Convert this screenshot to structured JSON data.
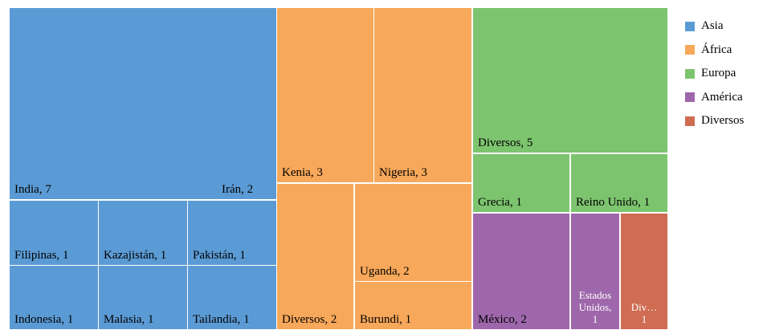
{
  "chart_data": {
    "type": "treemap",
    "groups": [
      {
        "name": "Asia",
        "color": "#5B9BD5",
        "items": [
          {
            "label": "India, 7",
            "value": 7
          },
          {
            "label": "Irán, 2",
            "value": 2
          },
          {
            "label": "Filipinas, 1",
            "value": 1
          },
          {
            "label": "Kazajistán, 1",
            "value": 1
          },
          {
            "label": "Pakistán, 1",
            "value": 1
          },
          {
            "label": "Indonesia, 1",
            "value": 1
          },
          {
            "label": "Malasia, 1",
            "value": 1
          },
          {
            "label": "Tailandia, 1",
            "value": 1
          }
        ]
      },
      {
        "name": "África",
        "color": "#F7A85A",
        "items": [
          {
            "label": "Kenia, 3",
            "value": 3
          },
          {
            "label": "Nigeria, 3",
            "value": 3
          },
          {
            "label": "Diversos, 2",
            "value": 2
          },
          {
            "label": "Uganda, 2",
            "value": 2
          },
          {
            "label": "Burundi, 1",
            "value": 1
          }
        ]
      },
      {
        "name": "Europa",
        "color": "#7DC46F",
        "items": [
          {
            "label": "Diversos, 5",
            "value": 5
          },
          {
            "label": "Grecia, 1",
            "value": 1
          },
          {
            "label": "Reino Unido, 1",
            "value": 1
          }
        ]
      },
      {
        "name": "América",
        "color": "#9E67AB",
        "items": [
          {
            "label": "México, 2",
            "value": 2
          },
          {
            "label": "Estados Unidos, 1",
            "display_lines": [
              "Estados",
              "Unidos,",
              "1"
            ],
            "value": 1
          }
        ]
      },
      {
        "name": "Diversos",
        "color": "#CF6C52",
        "items": [
          {
            "label": "Div… 1",
            "display_lines": [
              "Div…",
              "1"
            ],
            "value": 1
          }
        ]
      }
    ],
    "legend": {
      "position": "right",
      "entries": [
        "Asia",
        "África",
        "Europa",
        "América",
        "Diversos"
      ]
    }
  }
}
